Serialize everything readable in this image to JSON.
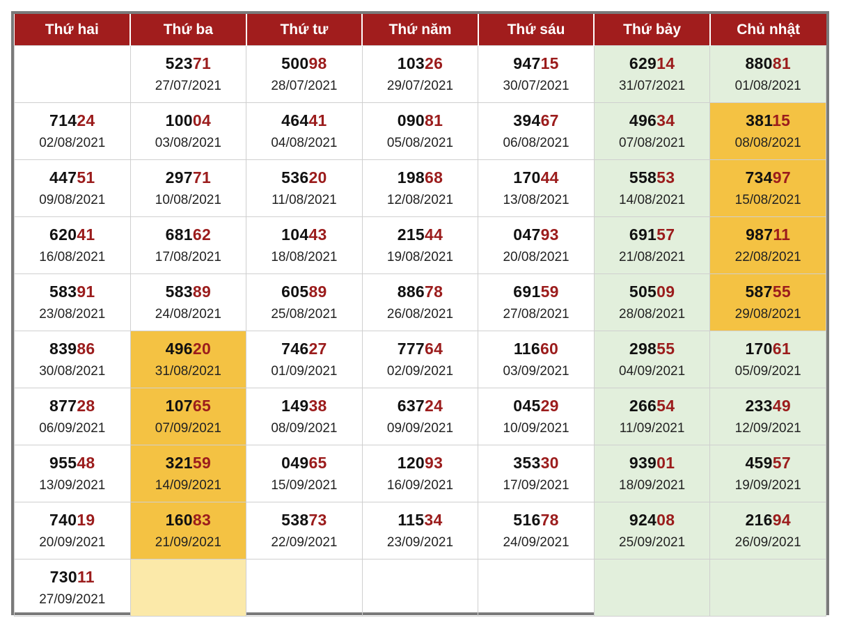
{
  "colors": {
    "header_bg": "#a11d1d",
    "header_text": "#ffffff",
    "tail_digits": "#9b1c1c",
    "weekend_bg": "#e2efdc",
    "highlight_bg": "#f4c243",
    "light_highlight_bg": "#fbe9a9",
    "frame_border": "#7a7a7a"
  },
  "headers": [
    "Thứ hai",
    "Thứ ba",
    "Thứ tư",
    "Thứ năm",
    "Thứ sáu",
    "Thứ bảy",
    "Chủ nhật"
  ],
  "rows": [
    [
      null,
      {
        "head": "523",
        "tail": "71",
        "date": "27/07/2021"
      },
      {
        "head": "500",
        "tail": "98",
        "date": "28/07/2021"
      },
      {
        "head": "103",
        "tail": "26",
        "date": "29/07/2021"
      },
      {
        "head": "947",
        "tail": "15",
        "date": "30/07/2021"
      },
      {
        "head": "629",
        "tail": "14",
        "date": "31/07/2021"
      },
      {
        "head": "880",
        "tail": "81",
        "date": "01/08/2021"
      }
    ],
    [
      {
        "head": "714",
        "tail": "24",
        "date": "02/08/2021"
      },
      {
        "head": "100",
        "tail": "04",
        "date": "03/08/2021"
      },
      {
        "head": "464",
        "tail": "41",
        "date": "04/08/2021"
      },
      {
        "head": "090",
        "tail": "81",
        "date": "05/08/2021"
      },
      {
        "head": "394",
        "tail": "67",
        "date": "06/08/2021"
      },
      {
        "head": "496",
        "tail": "34",
        "date": "07/08/2021"
      },
      {
        "head": "381",
        "tail": "15",
        "date": "08/08/2021",
        "highlight": true
      }
    ],
    [
      {
        "head": "447",
        "tail": "51",
        "date": "09/08/2021"
      },
      {
        "head": "297",
        "tail": "71",
        "date": "10/08/2021"
      },
      {
        "head": "536",
        "tail": "20",
        "date": "11/08/2021"
      },
      {
        "head": "198",
        "tail": "68",
        "date": "12/08/2021"
      },
      {
        "head": "170",
        "tail": "44",
        "date": "13/08/2021"
      },
      {
        "head": "558",
        "tail": "53",
        "date": "14/08/2021"
      },
      {
        "head": "734",
        "tail": "97",
        "date": "15/08/2021",
        "highlight": true
      }
    ],
    [
      {
        "head": "620",
        "tail": "41",
        "date": "16/08/2021"
      },
      {
        "head": "681",
        "tail": "62",
        "date": "17/08/2021"
      },
      {
        "head": "104",
        "tail": "43",
        "date": "18/08/2021"
      },
      {
        "head": "215",
        "tail": "44",
        "date": "19/08/2021"
      },
      {
        "head": "047",
        "tail": "93",
        "date": "20/08/2021"
      },
      {
        "head": "691",
        "tail": "57",
        "date": "21/08/2021"
      },
      {
        "head": "987",
        "tail": "11",
        "date": "22/08/2021",
        "highlight": true
      }
    ],
    [
      {
        "head": "583",
        "tail": "91",
        "date": "23/08/2021"
      },
      {
        "head": "583",
        "tail": "89",
        "date": "24/08/2021"
      },
      {
        "head": "605",
        "tail": "89",
        "date": "25/08/2021"
      },
      {
        "head": "886",
        "tail": "78",
        "date": "26/08/2021"
      },
      {
        "head": "691",
        "tail": "59",
        "date": "27/08/2021"
      },
      {
        "head": "505",
        "tail": "09",
        "date": "28/08/2021"
      },
      {
        "head": "587",
        "tail": "55",
        "date": "29/08/2021",
        "highlight": true
      }
    ],
    [
      {
        "head": "839",
        "tail": "86",
        "date": "30/08/2021"
      },
      {
        "head": "496",
        "tail": "20",
        "date": "31/08/2021",
        "highlight": true
      },
      {
        "head": "746",
        "tail": "27",
        "date": "01/09/2021"
      },
      {
        "head": "777",
        "tail": "64",
        "date": "02/09/2021"
      },
      {
        "head": "116",
        "tail": "60",
        "date": "03/09/2021"
      },
      {
        "head": "298",
        "tail": "55",
        "date": "04/09/2021"
      },
      {
        "head": "170",
        "tail": "61",
        "date": "05/09/2021"
      }
    ],
    [
      {
        "head": "877",
        "tail": "28",
        "date": "06/09/2021"
      },
      {
        "head": "107",
        "tail": "65",
        "date": "07/09/2021",
        "highlight": true
      },
      {
        "head": "149",
        "tail": "38",
        "date": "08/09/2021"
      },
      {
        "head": "637",
        "tail": "24",
        "date": "09/09/2021"
      },
      {
        "head": "045",
        "tail": "29",
        "date": "10/09/2021"
      },
      {
        "head": "266",
        "tail": "54",
        "date": "11/09/2021"
      },
      {
        "head": "233",
        "tail": "49",
        "date": "12/09/2021"
      }
    ],
    [
      {
        "head": "955",
        "tail": "48",
        "date": "13/09/2021"
      },
      {
        "head": "321",
        "tail": "59",
        "date": "14/09/2021",
        "highlight": true
      },
      {
        "head": "049",
        "tail": "65",
        "date": "15/09/2021"
      },
      {
        "head": "120",
        "tail": "93",
        "date": "16/09/2021"
      },
      {
        "head": "353",
        "tail": "30",
        "date": "17/09/2021"
      },
      {
        "head": "939",
        "tail": "01",
        "date": "18/09/2021"
      },
      {
        "head": "459",
        "tail": "57",
        "date": "19/09/2021"
      }
    ],
    [
      {
        "head": "740",
        "tail": "19",
        "date": "20/09/2021"
      },
      {
        "head": "160",
        "tail": "83",
        "date": "21/09/2021",
        "highlight": true
      },
      {
        "head": "538",
        "tail": "73",
        "date": "22/09/2021"
      },
      {
        "head": "115",
        "tail": "34",
        "date": "23/09/2021"
      },
      {
        "head": "516",
        "tail": "78",
        "date": "24/09/2021"
      },
      {
        "head": "924",
        "tail": "08",
        "date": "25/09/2021"
      },
      {
        "head": "216",
        "tail": "94",
        "date": "26/09/2021"
      }
    ],
    [
      {
        "head": "730",
        "tail": "11",
        "date": "27/09/2021"
      },
      {
        "empty_highlight": true
      },
      null,
      null,
      null,
      null,
      null
    ]
  ]
}
